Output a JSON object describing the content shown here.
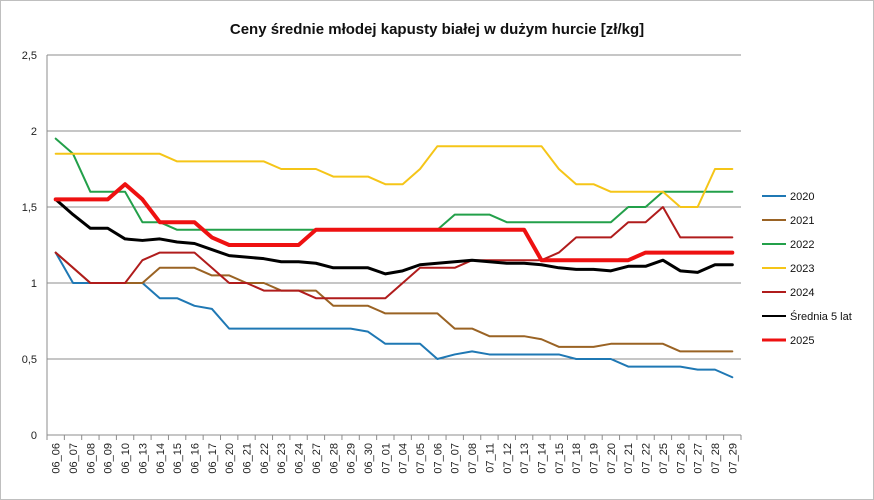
{
  "chart_data": {
    "type": "line",
    "title": "Ceny średnie młodej kapusty białej w dużym hurcie [zł/kg]",
    "xlabel": "",
    "ylabel": "",
    "ylim": [
      0,
      2.5
    ],
    "yticks": [
      "0",
      "0,5",
      "1",
      "1,5",
      "2",
      "2,5"
    ],
    "grid": true,
    "legend": "right",
    "categories": [
      "06_06",
      "06_07",
      "06_08",
      "06_09",
      "06_10",
      "06_13",
      "06_14",
      "06_15",
      "06_16",
      "06_17",
      "06_20",
      "06_21",
      "06_22",
      "06_23",
      "06_24",
      "06_27",
      "06_28",
      "06_29",
      "06_30",
      "07_01",
      "07_04",
      "07_05",
      "07_06",
      "07_07",
      "07_08",
      "07_11",
      "07_12",
      "07_13",
      "07_14",
      "07_15",
      "07_18",
      "07_19",
      "07_20",
      "07_21",
      "07_22",
      "07_25",
      "07_26",
      "07_27",
      "07_28",
      "07_29"
    ],
    "series": [
      {
        "name": "2020",
        "color": "#1f78b4",
        "width": 2,
        "values": [
          1.2,
          1.0,
          1.0,
          1.0,
          1.0,
          1.0,
          0.9,
          0.9,
          0.85,
          0.83,
          0.7,
          0.7,
          0.7,
          0.7,
          0.7,
          0.7,
          0.7,
          0.7,
          0.68,
          0.6,
          0.6,
          0.6,
          0.5,
          0.53,
          0.55,
          0.53,
          0.53,
          0.53,
          0.53,
          0.53,
          0.5,
          0.5,
          0.5,
          0.45,
          0.45,
          0.45,
          0.45,
          0.43,
          0.43,
          0.38
        ]
      },
      {
        "name": "2021",
        "color": "#9a6324",
        "width": 2,
        "values": [
          1.2,
          1.1,
          1.0,
          1.0,
          1.0,
          1.0,
          1.1,
          1.1,
          1.1,
          1.05,
          1.05,
          1.0,
          1.0,
          0.95,
          0.95,
          0.95,
          0.85,
          0.85,
          0.85,
          0.8,
          0.8,
          0.8,
          0.8,
          0.7,
          0.7,
          0.65,
          0.65,
          0.65,
          0.63,
          0.58,
          0.58,
          0.58,
          0.6,
          0.6,
          0.6,
          0.6,
          0.55,
          0.55,
          0.55,
          0.55
        ]
      },
      {
        "name": "2022",
        "color": "#23a04a",
        "width": 2,
        "values": [
          1.95,
          1.85,
          1.6,
          1.6,
          1.6,
          1.4,
          1.4,
          1.35,
          1.35,
          1.35,
          1.35,
          1.35,
          1.35,
          1.35,
          1.35,
          1.35,
          1.35,
          1.35,
          1.35,
          1.35,
          1.35,
          1.35,
          1.35,
          1.45,
          1.45,
          1.45,
          1.4,
          1.4,
          1.4,
          1.4,
          1.4,
          1.4,
          1.4,
          1.5,
          1.5,
          1.6,
          1.6,
          1.6,
          1.6,
          1.6
        ]
      },
      {
        "name": "2023",
        "color": "#f5c518",
        "width": 2,
        "values": [
          1.85,
          1.85,
          1.85,
          1.85,
          1.85,
          1.85,
          1.85,
          1.8,
          1.8,
          1.8,
          1.8,
          1.8,
          1.8,
          1.75,
          1.75,
          1.75,
          1.7,
          1.7,
          1.7,
          1.65,
          1.65,
          1.75,
          1.9,
          1.9,
          1.9,
          1.9,
          1.9,
          1.9,
          1.9,
          1.75,
          1.65,
          1.65,
          1.6,
          1.6,
          1.6,
          1.6,
          1.5,
          1.5,
          1.75,
          1.75
        ]
      },
      {
        "name": "2024",
        "color": "#b01c1c",
        "width": 2,
        "values": [
          1.2,
          1.1,
          1.0,
          1.0,
          1.0,
          1.15,
          1.2,
          1.2,
          1.2,
          1.1,
          1.0,
          1.0,
          0.95,
          0.95,
          0.95,
          0.9,
          0.9,
          0.9,
          0.9,
          0.9,
          1.0,
          1.1,
          1.1,
          1.1,
          1.15,
          1.15,
          1.15,
          1.15,
          1.15,
          1.2,
          1.3,
          1.3,
          1.3,
          1.4,
          1.4,
          1.5,
          1.3,
          1.3,
          1.3,
          1.3
        ]
      },
      {
        "name": "Średnia 5 lat",
        "color": "#000000",
        "width": 3,
        "values": [
          1.55,
          1.45,
          1.36,
          1.36,
          1.29,
          1.28,
          1.29,
          1.27,
          1.26,
          1.22,
          1.18,
          1.17,
          1.16,
          1.14,
          1.14,
          1.13,
          1.1,
          1.1,
          1.1,
          1.06,
          1.08,
          1.12,
          1.13,
          1.14,
          1.15,
          1.14,
          1.13,
          1.13,
          1.12,
          1.1,
          1.09,
          1.09,
          1.08,
          1.11,
          1.11,
          1.15,
          1.08,
          1.07,
          1.12,
          1.12
        ]
      },
      {
        "name": "2025",
        "color": "#ee1111",
        "width": 4,
        "values": [
          1.55,
          1.55,
          1.55,
          1.55,
          1.65,
          1.55,
          1.4,
          1.4,
          1.4,
          1.3,
          1.25,
          1.25,
          1.25,
          1.25,
          1.25,
          1.35,
          1.35,
          1.35,
          1.35,
          1.35,
          1.35,
          1.35,
          1.35,
          1.35,
          1.35,
          1.35,
          1.35,
          1.35,
          1.15,
          1.15,
          1.15,
          1.15,
          1.15,
          1.15,
          1.2,
          1.2,
          1.2,
          1.2,
          1.2,
          1.2
        ]
      }
    ]
  }
}
